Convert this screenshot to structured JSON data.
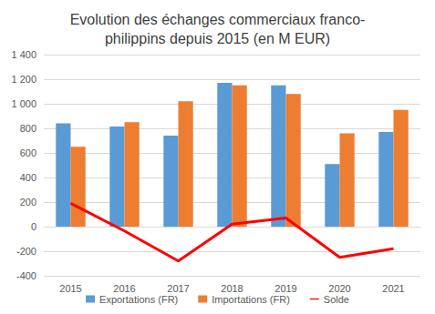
{
  "chart_data": {
    "type": "bar",
    "title": "Evolution des échanges commerciaux franco-\nphilippins depuis 2015 (en M EUR)",
    "categories": [
      "2015",
      "2016",
      "2017",
      "2018",
      "2019",
      "2020",
      "2021"
    ],
    "series": [
      {
        "name": "Exportations (FR)",
        "type": "bar",
        "color": "#5B9BD5",
        "values": [
          840,
          815,
          740,
          1170,
          1150,
          510,
          770
        ]
      },
      {
        "name": "Importations (FR)",
        "type": "bar",
        "color": "#ED7D31",
        "values": [
          650,
          850,
          1020,
          1150,
          1080,
          760,
          950
        ]
      },
      {
        "name": "Solde",
        "type": "line",
        "color": "#FF0000",
        "values": [
          190,
          -35,
          -280,
          20,
          70,
          -250,
          -180
        ]
      }
    ],
    "ylim": [
      -400,
      1400
    ],
    "yticks": [
      -400,
      -200,
      0,
      200,
      400,
      600,
      800,
      {
        "value": 1000,
        "label": "1 000"
      },
      {
        "value": 1200,
        "label": "1 200"
      },
      {
        "value": 1400,
        "label": "1 400"
      }
    ],
    "grid": true,
    "legend": "bottom"
  }
}
